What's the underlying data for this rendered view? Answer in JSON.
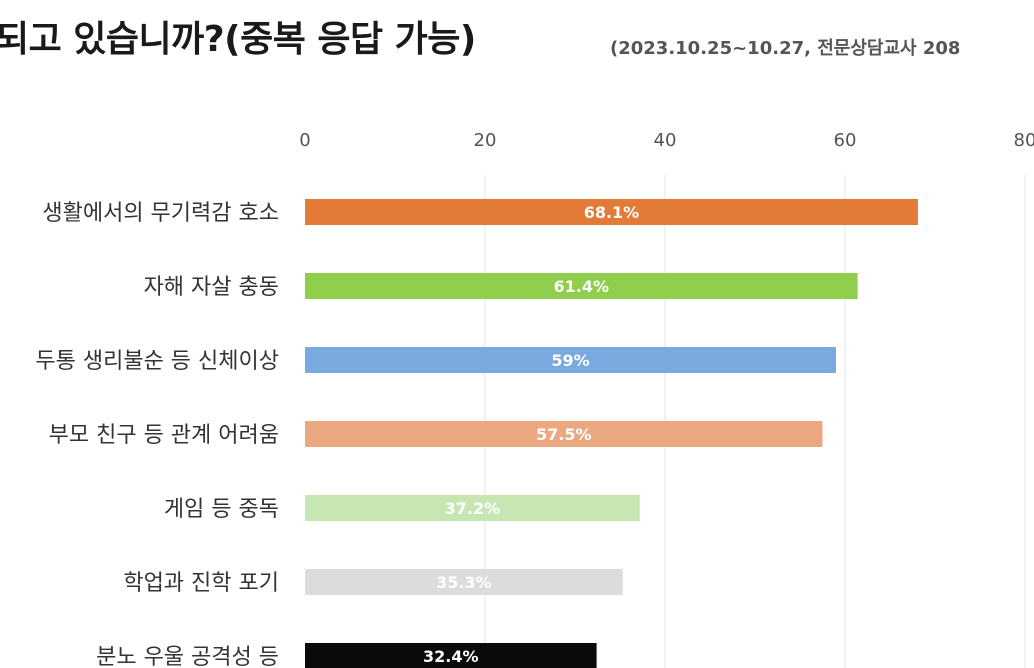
{
  "chart_data": {
    "type": "bar",
    "orientation": "horizontal",
    "title": "되고 있습니까?(중복 응답 가능)",
    "subtitle": "(2023.10.25~10.27, 전문상담교사 208",
    "categories": [
      "생활에서의 무기력감 호소",
      "자해 자살 충동",
      "두통 생리불순 등 신체이상",
      "부모 친구 등 관계 어려움",
      "게임 등 중독",
      "학업과 진학 포기",
      "분노 우울 공격성 등"
    ],
    "values": [
      68.1,
      61.4,
      59,
      57.5,
      37.2,
      35.3,
      32.4
    ],
    "data_labels": [
      "68.1%",
      "61.4%",
      "59%",
      "57.5%",
      "37.2%",
      "35.3%",
      "32.4%"
    ],
    "bar_colors": [
      "#e47a37",
      "#8fcf4b",
      "#7aa9e0",
      "#eba77f",
      "#c7e6b2",
      "#dcdcdc",
      "#0b0b0b"
    ],
    "label_colors": [
      "#ffffff",
      "#ffffff",
      "#ffffff",
      "#ffffff",
      "#ffffff",
      "#ffffff",
      "#ffffff"
    ],
    "xlim": [
      0,
      80
    ],
    "xticks": [
      0,
      20,
      40,
      60,
      80
    ],
    "xtick_labels": [
      "0",
      "20",
      "40",
      "60",
      "80"
    ],
    "xaxis_position": "top",
    "grid": true,
    "legend": "none"
  }
}
